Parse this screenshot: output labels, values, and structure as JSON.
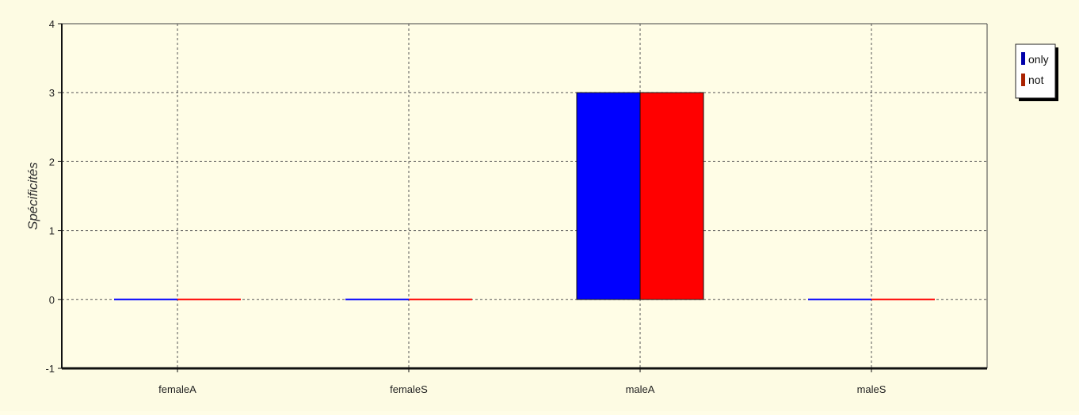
{
  "chart_data": {
    "type": "bar",
    "categories": [
      "femaleA",
      "femaleS",
      "maleA",
      "maleS"
    ],
    "series": [
      {
        "name": "only",
        "values": [
          0,
          0,
          3,
          0
        ],
        "color": "#0000ff"
      },
      {
        "name": "not",
        "values": [
          0,
          0,
          3,
          0
        ],
        "color": "#ff0000"
      }
    ],
    "ylabel": "Spécificités",
    "xlabel": "",
    "ylim": [
      -1,
      4
    ],
    "yticks": [
      "4",
      "3",
      "2",
      "1",
      "0",
      "-1"
    ],
    "grid": true,
    "legend_position": "top-right",
    "background_color": "#fffde6"
  }
}
